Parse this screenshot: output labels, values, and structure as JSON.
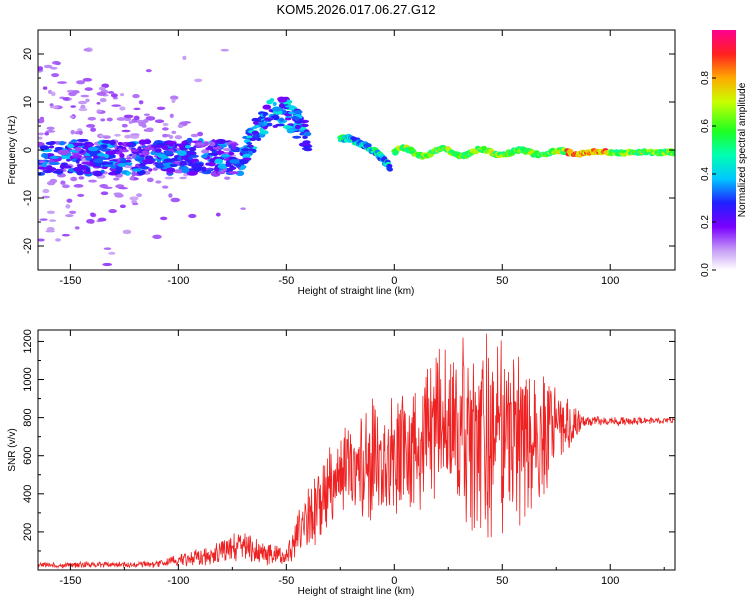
{
  "figure": {
    "title": "KOM5.2026.017.06.27.G12"
  },
  "chart_data": [
    {
      "type": "heatmap",
      "title": "KOM5.2026.017.06.27.G12",
      "xlabel": "Height of straight line (km)",
      "ylabel": "Frequency (Hz)",
      "xlim": [
        -165,
        130
      ],
      "ylim": [
        -25,
        25
      ],
      "x_ticks": [
        -150,
        -100,
        -50,
        0,
        50,
        100
      ],
      "y_ticks": [
        -20,
        -10,
        0,
        10,
        20
      ],
      "colorbar": {
        "label": "Normalized spectral amplitude",
        "range": [
          0,
          1
        ],
        "ticks": [
          0.0,
          0.2,
          0.4,
          0.6,
          0.8
        ],
        "tick_labels": [
          "0.0",
          "0.2",
          "0.4",
          "0.6",
          "0.8"
        ]
      },
      "features": [
        {
          "segment": "dispersed noise",
          "x_range": [
            -165,
            -65
          ],
          "frequency_range": [
            -24,
            22
          ],
          "amplitude": 0.12
        },
        {
          "segment": "noise band",
          "x_range": [
            -165,
            -70
          ],
          "frequency_center": -1.5,
          "amplitude": 0.3
        },
        {
          "segment": "rising arc",
          "x_range": [
            -70,
            -40
          ],
          "frequency_range": [
            0,
            9
          ],
          "amplitude": 0.35
        },
        {
          "segment": "descending arc",
          "x_range": [
            -25,
            -2
          ],
          "frequency_from": 2.5,
          "frequency_to": -3.5,
          "amplitude": 0.45
        },
        {
          "segment": "stable carrier",
          "x_range": [
            0,
            130
          ],
          "frequency_center": -0.5,
          "amplitude_range": [
            0.45,
            1.0
          ]
        }
      ]
    },
    {
      "type": "line",
      "xlabel": "Height of straight line (km)",
      "ylabel": "SNR (v/v)",
      "xlim": [
        -165,
        130
      ],
      "ylim": [
        0,
        1260
      ],
      "x_ticks": [
        -150,
        -100,
        -50,
        0,
        50,
        100
      ],
      "y_ticks": [
        200,
        400,
        600,
        800,
        1000,
        1200
      ],
      "color": "#ee2222",
      "series": [
        {
          "name": "SNR",
          "envelope": [
            {
              "x": -165,
              "mid": 25,
              "amp": 15
            },
            {
              "x": -110,
              "mid": 30,
              "amp": 18
            },
            {
              "x": -85,
              "mid": 80,
              "amp": 60
            },
            {
              "x": -70,
              "mid": 130,
              "amp": 90
            },
            {
              "x": -60,
              "mid": 90,
              "amp": 70
            },
            {
              "x": -50,
              "mid": 70,
              "amp": 40
            },
            {
              "x": -42,
              "mid": 250,
              "amp": 180
            },
            {
              "x": -30,
              "mid": 420,
              "amp": 260
            },
            {
              "x": -18,
              "mid": 520,
              "amp": 300
            },
            {
              "x": -5,
              "mid": 600,
              "amp": 360
            },
            {
              "x": 10,
              "mid": 620,
              "amp": 400
            },
            {
              "x": 20,
              "mid": 800,
              "amp": 450
            },
            {
              "x": 35,
              "mid": 700,
              "amp": 560
            },
            {
              "x": 50,
              "mid": 680,
              "amp": 580
            },
            {
              "x": 65,
              "mid": 720,
              "amp": 420
            },
            {
              "x": 78,
              "mid": 760,
              "amp": 200
            },
            {
              "x": 88,
              "mid": 780,
              "amp": 30
            },
            {
              "x": 130,
              "mid": 785,
              "amp": 15
            }
          ]
        }
      ]
    }
  ]
}
